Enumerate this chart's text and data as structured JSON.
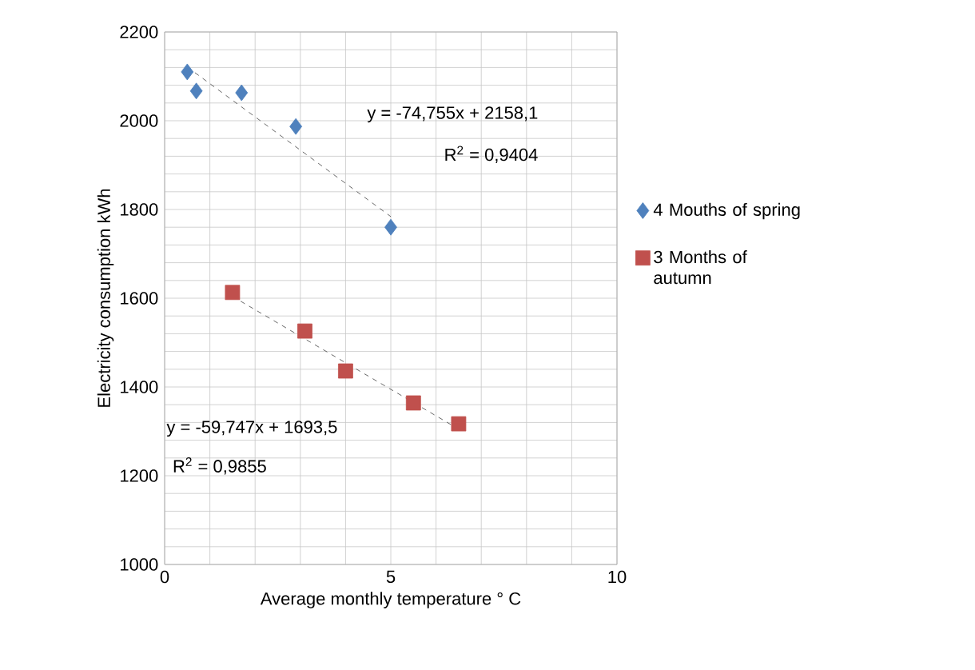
{
  "chart_data": {
    "type": "scatter",
    "xlabel": "Average monthly temperature ° C",
    "ylabel": "Electricity consumption kWh",
    "xlim": [
      0,
      10
    ],
    "xticks": [
      0,
      5,
      10
    ],
    "ylim": [
      1000,
      2200
    ],
    "yticks": [
      1000,
      1200,
      1400,
      1600,
      1800,
      2000,
      2200
    ],
    "grid": true,
    "legend": "right",
    "series": [
      {
        "name": "4 Mouths of spring",
        "color": "#4f81bd",
        "marker": "diamond",
        "x": [
          0.5,
          0.7,
          1.7,
          2.9,
          5.0
        ],
        "values": [
          2110,
          2067,
          2063,
          1987,
          1760
        ]
      },
      {
        "name": "3 Months of autumn",
        "color": "#c0504d",
        "marker": "square",
        "x": [
          1.5,
          3.1,
          4.0,
          5.5,
          6.5
        ],
        "values": [
          1613,
          1526,
          1436,
          1364,
          1317
        ]
      },
      {
        "type": "line",
        "color": "#404040",
        "marker": "none",
        "line_style": "dashed",
        "x": [
          0.5,
          5.0
        ],
        "values": [
          2121,
          1784
        ]
      },
      {
        "type": "line",
        "color": "#404040",
        "marker": "none",
        "line_style": "dashed",
        "x": [
          1.5,
          6.5
        ],
        "values": [
          1604,
          1305
        ]
      }
    ],
    "annotations": [
      "y = -74,755x + 2158,1",
      "R$^{2}$ = 0,9404",
      "y = -59,747x + 1693,5",
      "R$^{2}$ = 0,9855"
    ]
  }
}
